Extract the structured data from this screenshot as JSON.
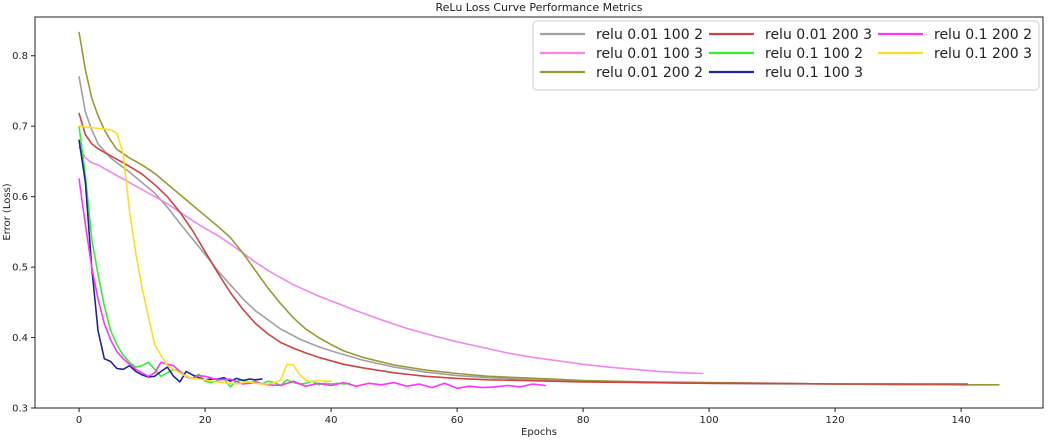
{
  "chart_data": {
    "type": "line",
    "title": "ReLu Loss Curve Performance Metrics",
    "xlabel": "Epochs",
    "ylabel": "Error (Loss)",
    "xlim": [
      -7,
      153
    ],
    "ylim": [
      0.3,
      0.855
    ],
    "xticks": [
      0,
      20,
      40,
      60,
      80,
      100,
      120,
      140
    ],
    "yticks": [
      0.3,
      0.4,
      0.5,
      0.6,
      0.7,
      0.8
    ],
    "grid": false,
    "legend_placement": "top-right",
    "series": [
      {
        "name": "relu 0.01 100 2",
        "color": "#a0a0a0",
        "x": [
          0,
          1,
          2,
          3,
          4,
          5,
          6,
          8,
          10,
          12,
          14,
          16,
          18,
          20,
          22,
          24,
          26,
          28,
          30,
          32,
          35,
          38,
          40,
          45,
          50,
          55,
          60,
          65,
          70,
          75,
          80,
          90,
          100,
          110,
          120,
          130,
          140,
          145
        ],
        "y": [
          0.77,
          0.72,
          0.695,
          0.675,
          0.665,
          0.655,
          0.648,
          0.635,
          0.62,
          0.605,
          0.585,
          0.562,
          0.54,
          0.518,
          0.495,
          0.475,
          0.455,
          0.438,
          0.425,
          0.412,
          0.398,
          0.387,
          0.381,
          0.368,
          0.358,
          0.351,
          0.346,
          0.343,
          0.341,
          0.339,
          0.338,
          0.336,
          0.335,
          0.334,
          0.334,
          0.333,
          0.333,
          0.333
        ]
      },
      {
        "name": "relu 0.01 100 3",
        "color": "#ee88ee",
        "x": [
          0,
          1,
          2,
          3,
          4,
          5,
          6,
          8,
          10,
          12,
          14,
          16,
          18,
          20,
          22,
          24,
          26,
          28,
          30,
          32,
          34,
          36,
          38,
          40,
          44,
          48,
          52,
          56,
          60,
          64,
          68,
          72,
          76,
          80,
          84,
          88,
          92,
          96,
          99
        ],
        "y": [
          0.67,
          0.655,
          0.648,
          0.645,
          0.64,
          0.635,
          0.63,
          0.62,
          0.61,
          0.6,
          0.59,
          0.578,
          0.566,
          0.555,
          0.545,
          0.533,
          0.52,
          0.507,
          0.495,
          0.485,
          0.475,
          0.467,
          0.459,
          0.452,
          0.438,
          0.425,
          0.413,
          0.403,
          0.394,
          0.386,
          0.378,
          0.372,
          0.367,
          0.362,
          0.358,
          0.355,
          0.352,
          0.35,
          0.349
        ]
      },
      {
        "name": "relu 0.01 200 2",
        "color": "#999933",
        "x": [
          0,
          1,
          2,
          3,
          4,
          5,
          6,
          8,
          10,
          12,
          14,
          16,
          18,
          20,
          22,
          24,
          26,
          28,
          30,
          32,
          34,
          36,
          38,
          40,
          42,
          45,
          50,
          55,
          60,
          65,
          70,
          75,
          80,
          90,
          100,
          110,
          120,
          130,
          140,
          146
        ],
        "y": [
          0.833,
          0.78,
          0.74,
          0.715,
          0.695,
          0.68,
          0.667,
          0.655,
          0.645,
          0.633,
          0.618,
          0.603,
          0.588,
          0.573,
          0.558,
          0.542,
          0.52,
          0.495,
          0.47,
          0.448,
          0.428,
          0.412,
          0.4,
          0.39,
          0.381,
          0.372,
          0.361,
          0.354,
          0.349,
          0.345,
          0.343,
          0.341,
          0.339,
          0.337,
          0.336,
          0.335,
          0.334,
          0.334,
          0.333,
          0.333
        ]
      },
      {
        "name": "relu 0.01 200 3",
        "color": "#cc4444",
        "x": [
          0,
          1,
          2,
          3,
          4,
          5,
          6,
          8,
          10,
          12,
          14,
          16,
          18,
          20,
          22,
          24,
          26,
          28,
          30,
          32,
          34,
          36,
          38,
          40,
          42,
          45,
          50,
          55,
          60,
          65,
          70,
          75,
          80,
          90,
          100,
          110,
          120,
          130,
          140,
          141
        ],
        "y": [
          0.718,
          0.688,
          0.675,
          0.668,
          0.663,
          0.658,
          0.653,
          0.643,
          0.632,
          0.617,
          0.6,
          0.578,
          0.552,
          0.522,
          0.492,
          0.464,
          0.44,
          0.42,
          0.405,
          0.393,
          0.385,
          0.378,
          0.372,
          0.367,
          0.362,
          0.357,
          0.35,
          0.345,
          0.342,
          0.34,
          0.339,
          0.338,
          0.337,
          0.336,
          0.335,
          0.335,
          0.334,
          0.334,
          0.334,
          0.334
        ]
      },
      {
        "name": "relu 0.1 100 2",
        "color": "#33ee33",
        "x": [
          0,
          1,
          2,
          3,
          4,
          5,
          6,
          7,
          8,
          9,
          10,
          11,
          12,
          13,
          14,
          15,
          16,
          17,
          18,
          19,
          20,
          21,
          22,
          23,
          24,
          25,
          26,
          27,
          28,
          29,
          30,
          31,
          32,
          33,
          34,
          35,
          36,
          37,
          38,
          39,
          40,
          41,
          42,
          43
        ],
        "y": [
          0.7,
          0.63,
          0.54,
          0.49,
          0.445,
          0.41,
          0.39,
          0.375,
          0.365,
          0.358,
          0.36,
          0.365,
          0.355,
          0.345,
          0.35,
          0.355,
          0.352,
          0.345,
          0.342,
          0.348,
          0.338,
          0.336,
          0.339,
          0.342,
          0.33,
          0.338,
          0.34,
          0.336,
          0.338,
          0.334,
          0.338,
          0.336,
          0.332,
          0.34,
          0.336,
          0.334,
          0.335,
          0.338,
          0.333,
          0.335,
          0.334,
          0.335,
          0.334,
          0.335
        ]
      },
      {
        "name": "relu 0.1 100 3",
        "color": "#222299",
        "x": [
          0,
          1,
          2,
          3,
          4,
          5,
          6,
          7,
          8,
          9,
          10,
          11,
          12,
          13,
          14,
          15,
          16,
          17,
          18,
          19,
          20,
          21,
          22,
          23,
          24,
          25,
          26,
          27,
          28,
          29
        ],
        "y": [
          0.68,
          0.62,
          0.5,
          0.41,
          0.37,
          0.366,
          0.356,
          0.355,
          0.36,
          0.352,
          0.347,
          0.344,
          0.345,
          0.352,
          0.358,
          0.345,
          0.337,
          0.352,
          0.347,
          0.343,
          0.34,
          0.341,
          0.341,
          0.343,
          0.338,
          0.342,
          0.339,
          0.341,
          0.34,
          0.341
        ]
      },
      {
        "name": "relu 0.1 200 2",
        "color": "#ff33ff",
        "x": [
          0,
          1,
          2,
          3,
          4,
          5,
          6,
          7,
          8,
          9,
          10,
          11,
          12,
          13,
          14,
          15,
          16,
          17,
          18,
          19,
          20,
          22,
          24,
          26,
          28,
          30,
          32,
          34,
          36,
          38,
          40,
          42,
          44,
          46,
          48,
          50,
          52,
          54,
          56,
          58,
          60,
          62,
          64,
          66,
          68,
          70,
          72,
          74
        ],
        "y": [
          0.625,
          0.56,
          0.5,
          0.455,
          0.42,
          0.397,
          0.38,
          0.37,
          0.362,
          0.355,
          0.35,
          0.345,
          0.35,
          0.365,
          0.362,
          0.36,
          0.352,
          0.344,
          0.342,
          0.346,
          0.345,
          0.34,
          0.341,
          0.334,
          0.336,
          0.333,
          0.332,
          0.338,
          0.331,
          0.335,
          0.332,
          0.336,
          0.331,
          0.335,
          0.333,
          0.336,
          0.331,
          0.334,
          0.329,
          0.335,
          0.328,
          0.331,
          0.329,
          0.33,
          0.332,
          0.33,
          0.334,
          0.332
        ]
      },
      {
        "name": "relu 0.1 200 3",
        "color": "#ffdd22",
        "x": [
          0,
          1,
          2,
          3,
          4,
          5,
          6,
          7,
          8,
          9,
          10,
          11,
          12,
          13,
          14,
          15,
          16,
          17,
          18,
          19,
          20,
          21,
          22,
          23,
          24,
          25,
          26,
          27,
          28,
          29,
          30,
          31,
          32,
          33,
          34,
          35,
          36,
          37,
          38,
          39,
          40
        ],
        "y": [
          0.7,
          0.699,
          0.698,
          0.697,
          0.696,
          0.695,
          0.69,
          0.66,
          0.58,
          0.52,
          0.47,
          0.43,
          0.39,
          0.375,
          0.36,
          0.355,
          0.35,
          0.345,
          0.342,
          0.341,
          0.34,
          0.338,
          0.337,
          0.336,
          0.335,
          0.334,
          0.336,
          0.337,
          0.335,
          0.334,
          0.334,
          0.336,
          0.34,
          0.362,
          0.361,
          0.348,
          0.339,
          0.337,
          0.339,
          0.338,
          0.338
        ]
      }
    ]
  }
}
